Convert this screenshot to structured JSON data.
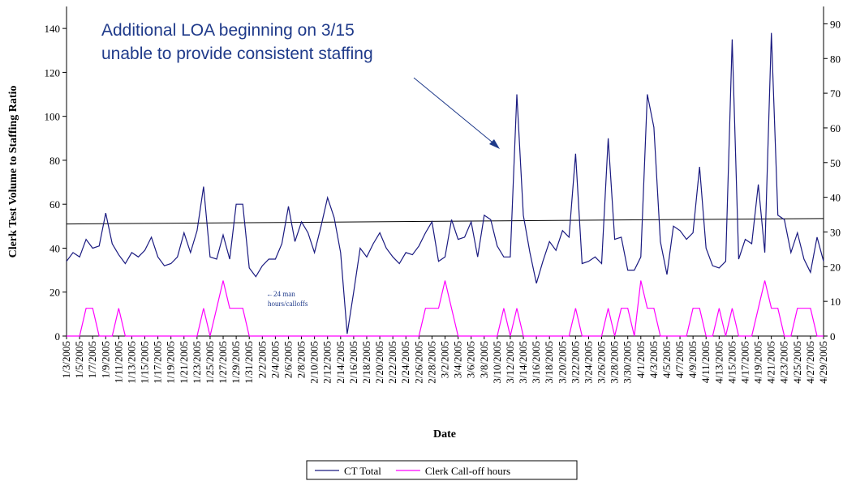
{
  "chart_data": {
    "type": "line",
    "x_label": "Date",
    "y_label": "Clerk Test Volume to Staffing Ratio",
    "annotation": [
      "Additional LOA beginning on 3/15",
      "unable to provide consistent staffing"
    ],
    "note": [
      "←24 man",
      "hours/calloffs"
    ],
    "categories": [
      "1/3/2005",
      null,
      "1/5/2005",
      null,
      "1/7/2005",
      null,
      "1/9/2005",
      null,
      "1/11/2005",
      null,
      "1/13/2005",
      null,
      "1/15/2005",
      null,
      "1/17/2005",
      null,
      "1/19/2005",
      null,
      "1/21/2005",
      null,
      "1/23/2005",
      null,
      "1/25/2005",
      null,
      "1/27/2005",
      null,
      "1/29/2005",
      null,
      "1/31/2005",
      null,
      "2/2/2005",
      null,
      "2/4/2005",
      null,
      "2/6/2005",
      null,
      "2/8/2005",
      null,
      "2/10/2005",
      null,
      "2/12/2005",
      null,
      "2/14/2005",
      null,
      "2/16/2005",
      null,
      "2/18/2005",
      null,
      "2/20/2005",
      null,
      "2/22/2005",
      null,
      "2/24/2005",
      null,
      "2/26/2005",
      null,
      "2/28/2005",
      null,
      "3/2/2005",
      null,
      "3/4/2005",
      null,
      "3/6/2005",
      null,
      "3/8/2005",
      null,
      "3/10/2005",
      null,
      "3/12/2005",
      null,
      "3/14/2005",
      null,
      "3/16/2005",
      null,
      "3/18/2005",
      null,
      "3/20/2005",
      null,
      "3/22/2005",
      null,
      "3/24/2005",
      null,
      "3/26/2005",
      null,
      "3/28/2005",
      null,
      "3/30/2005",
      null,
      "4/1/2005",
      null,
      "4/3/2005",
      null,
      "4/5/2005",
      null,
      "4/7/2005",
      null,
      "4/9/2005",
      null,
      "4/11/2005",
      null,
      "4/13/2005",
      null,
      "4/15/2005",
      null,
      "4/17/2005",
      null,
      "4/19/2005",
      null,
      "4/21/2005",
      null,
      "4/23/2005",
      null,
      "4/25/2005",
      null,
      "4/27/2005",
      null,
      "4/29/2005"
    ],
    "series": [
      {
        "name": "CT Total",
        "color": "#1a1a80",
        "values": [
          34,
          38,
          36,
          44,
          40,
          41,
          56,
          42,
          37,
          33,
          38,
          36,
          39,
          45,
          36,
          32,
          33,
          36,
          47,
          38,
          48,
          68,
          36,
          35,
          46,
          35,
          60,
          60,
          31,
          27,
          32,
          35,
          35,
          42,
          59,
          43,
          52,
          47,
          38,
          50,
          63,
          54,
          38,
          1,
          20,
          40,
          36,
          42,
          47,
          40,
          36,
          33,
          38,
          37,
          41,
          47,
          52,
          34,
          36,
          53,
          44,
          45,
          52,
          36,
          55,
          53,
          41,
          36,
          36,
          110,
          55,
          38,
          24,
          34,
          43,
          39,
          48,
          45,
          83,
          33,
          34,
          36,
          33,
          90,
          44,
          45,
          30,
          30,
          36,
          110,
          95,
          43,
          28,
          50,
          48,
          44,
          47,
          77,
          40,
          32,
          31,
          34,
          135,
          35,
          44,
          42,
          69,
          38,
          138,
          55,
          53,
          38,
          47,
          35,
          29,
          45,
          34
        ]
      },
      {
        "name": "Clerk Call-off hours",
        "color": "#ff00ff",
        "axis": "y2",
        "values": [
          0,
          0,
          0,
          8,
          8,
          0,
          0,
          0,
          8,
          0,
          0,
          0,
          0,
          0,
          0,
          0,
          0,
          0,
          0,
          0,
          0,
          8,
          0,
          8,
          16,
          8,
          8,
          8,
          0,
          0,
          0,
          0,
          0,
          0,
          0,
          0,
          0,
          0,
          0,
          0,
          0,
          0,
          0,
          0,
          0,
          0,
          0,
          0,
          0,
          0,
          0,
          0,
          0,
          0,
          0,
          8,
          8,
          8,
          16,
          8,
          0,
          0,
          0,
          0,
          0,
          0,
          0,
          8,
          0,
          8,
          0,
          0,
          0,
          0,
          0,
          0,
          0,
          0,
          8,
          0,
          0,
          0,
          0,
          8,
          0,
          8,
          8,
          0,
          16,
          8,
          8,
          0,
          0,
          0,
          0,
          0,
          8,
          8,
          0,
          0,
          8,
          0,
          8,
          0,
          0,
          0,
          8,
          16,
          8,
          8,
          0,
          0,
          8,
          8,
          8,
          0,
          0
        ]
      }
    ],
    "trendline": {
      "color": "#000000",
      "values": [
        51,
        53.5
      ]
    },
    "ylim": [
      0,
      150
    ],
    "yticks": [
      0,
      20,
      40,
      60,
      80,
      100,
      120,
      140
    ],
    "y2lim": [
      0,
      95
    ],
    "y2ticks": [
      0,
      10,
      20,
      30,
      40,
      50,
      60,
      70,
      80,
      90
    ],
    "legend": "bottom"
  }
}
